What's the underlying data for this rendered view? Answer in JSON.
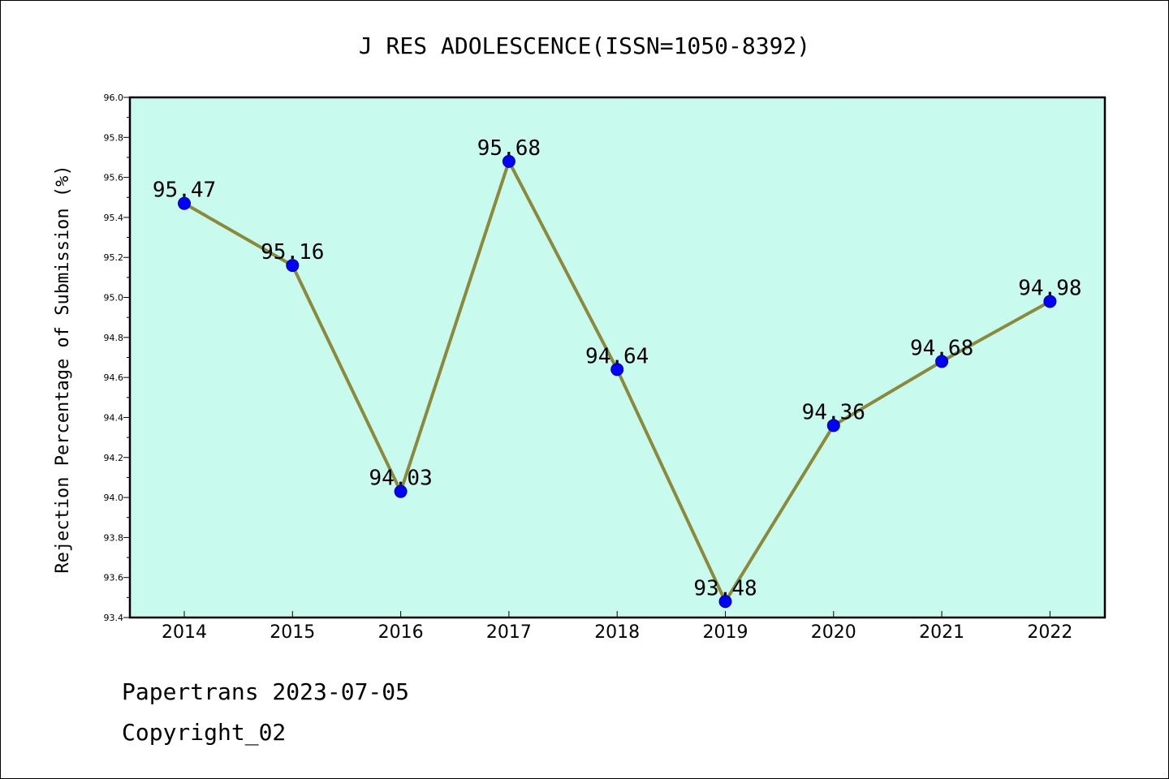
{
  "chart_data": {
    "type": "line",
    "title": "J RES ADOLESCENCE(ISSN=1050-8392)",
    "xlabel": "",
    "ylabel": "Rejection Percentage of Submission (%)",
    "categories": [
      "2014",
      "2015",
      "2016",
      "2017",
      "2018",
      "2019",
      "2020",
      "2021",
      "2022"
    ],
    "series": [
      {
        "values": [
          95.47,
          95.16,
          94.03,
          95.68,
          94.64,
          93.48,
          94.36,
          94.68,
          94.98
        ]
      }
    ],
    "data_labels": [
      "95.47",
      "95.16",
      "94.03",
      "95.68",
      "94.64",
      "93.48",
      "94.36",
      "94.68",
      "94.98"
    ],
    "ylim": [
      93.4,
      96.0
    ],
    "yticks": [
      "93.4",
      "93.6",
      "93.8",
      "94.0",
      "94.2",
      "94.4",
      "94.6",
      "94.8",
      "95.0",
      "95.2",
      "95.4",
      "95.6",
      "95.8",
      "96.0"
    ],
    "grid": false,
    "colors": {
      "plot_background": "#c8faee",
      "line": "#8b8a3a",
      "marker": "#0000ff"
    }
  },
  "footer": {
    "line1": "Papertrans 2023-07-05",
    "line2": "Copyright_02"
  }
}
